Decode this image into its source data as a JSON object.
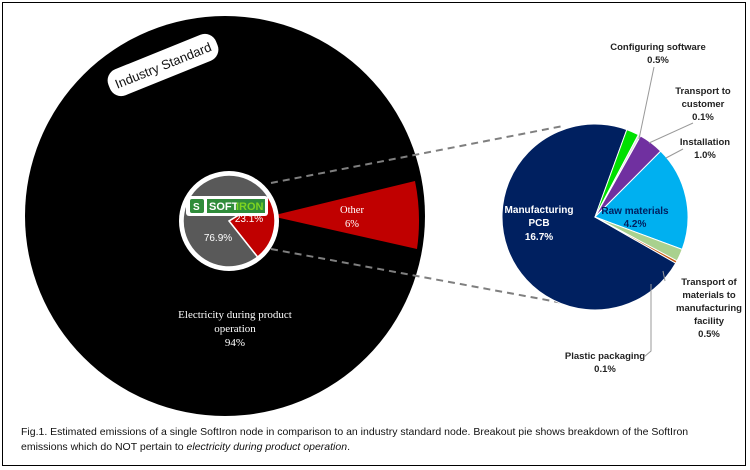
{
  "chart_data": [
    {
      "type": "pie",
      "title": "",
      "slices": [
        {
          "label": "Industry Standard",
          "display": "",
          "value": 100,
          "color": "#000000"
        }
      ],
      "badge_text": "Industry Standard",
      "electricity_label": "Electricity during product operation",
      "electricity_value": "94%",
      "other_label": "Other",
      "other_value": "6%",
      "other_color": "#c00000"
    },
    {
      "type": "pie",
      "title": "",
      "logo_soft": "SOFT",
      "logo_iron": "IRON",
      "slices": [
        {
          "label": "",
          "display": "76.9%",
          "value": 76.9,
          "color": "#595959"
        },
        {
          "label": "",
          "display": "23.1%",
          "value": 23.1,
          "color": "#c00000"
        }
      ]
    },
    {
      "type": "pie",
      "title": "",
      "slices": [
        {
          "label": "Manufacturing PCB",
          "display": "16.7%",
          "value": 16.7,
          "color": "#002060"
        },
        {
          "label": "Configuring software",
          "display": "0.5%",
          "value": 0.5,
          "color": "#00e000"
        },
        {
          "label": "Transport to customer",
          "display": "0.1%",
          "value": 0.1,
          "color": "#e0e0e0"
        },
        {
          "label": "Installation",
          "display": "1.0%",
          "value": 1.0,
          "color": "#7030a0"
        },
        {
          "label": "Raw materials",
          "display": "4.2%",
          "value": 4.2,
          "color": "#00b0f0"
        },
        {
          "label": "Transport of materials to manufacturing facility",
          "display": "0.5%",
          "value": 0.5,
          "color": "#a9d18e"
        },
        {
          "label": "Plastic packaging",
          "display": "0.1%",
          "value": 0.1,
          "color": "#c55a11"
        }
      ]
    }
  ],
  "caption": {
    "text": "Fig.1. Estimated emissions of a single SoftIron node in comparison to an industry standard node. Breakout pie shows breakdown of the SoftIron emissions which do NOT pertain to ",
    "italic": "electricity during product operation",
    "end": "."
  }
}
